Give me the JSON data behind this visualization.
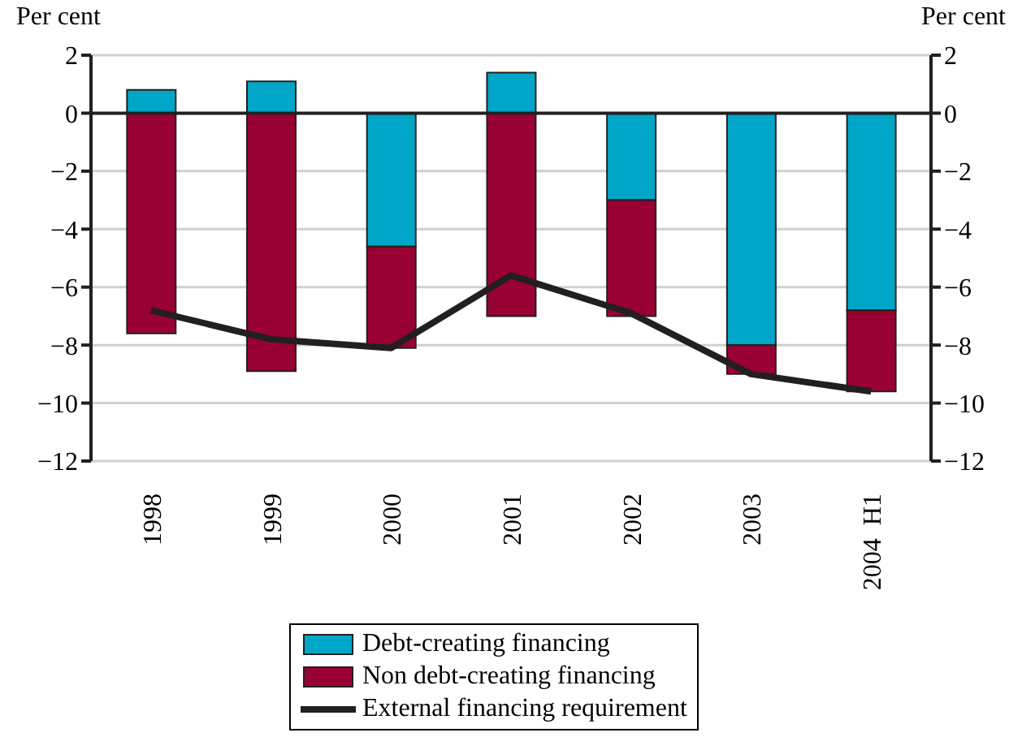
{
  "chart_data": {
    "type": "bar",
    "ylabel": "Per cent",
    "y2label": "Per cent",
    "categories": [
      "1998",
      "1999",
      "2000",
      "2001",
      "2002",
      "2003",
      "2004  H1"
    ],
    "series": [
      {
        "name": "Debt-creating financing",
        "color": "#00a6c8",
        "values": [
          0.8,
          1.1,
          -4.6,
          1.4,
          -3.0,
          -8.0,
          -6.8
        ]
      },
      {
        "name": "Non debt-creating financing",
        "color": "#990033",
        "values": [
          -7.6,
          -8.9,
          -3.5,
          -7.0,
          -4.0,
          -1.0,
          -2.8
        ]
      },
      {
        "name": "External financing requirement",
        "type": "line",
        "color": "#231f20",
        "values": [
          -6.8,
          -7.8,
          -8.1,
          -5.6,
          -6.9,
          -9.0,
          -9.6
        ]
      }
    ],
    "stacked": true,
    "ylim": [
      -12,
      2
    ],
    "yticks": [
      -12,
      -10,
      -8,
      -6,
      -4,
      -2,
      0,
      2
    ],
    "y2lim": [
      -12,
      2
    ],
    "y2ticks": [
      -12,
      -10,
      -8,
      -6,
      -4,
      -2,
      0,
      2
    ],
    "grid": "y",
    "legend": "bottom",
    "marker": "none",
    "line_style": "solid"
  }
}
